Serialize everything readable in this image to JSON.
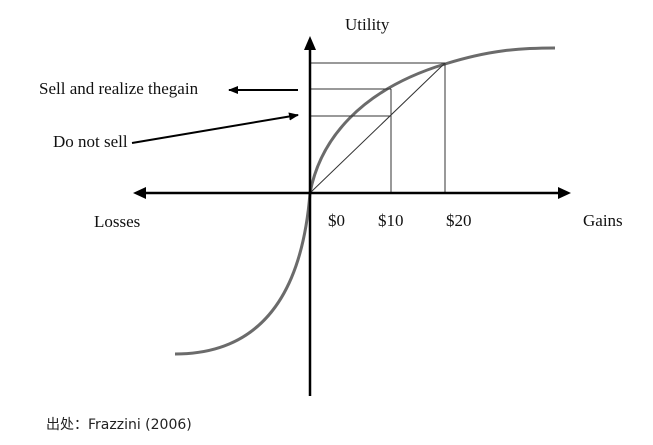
{
  "diagram": {
    "axis_labels": {
      "y": "Utility",
      "x_negative": "Losses",
      "x_positive": "Gains"
    },
    "tick_labels": [
      "$0",
      "$10",
      "$20"
    ],
    "annotations": {
      "sell": "Sell and realize thegain",
      "hold": "Do not sell"
    },
    "colors": {
      "curve": "#6b6b6b",
      "axes": "#000000",
      "guides": "#333333"
    }
  },
  "caption": {
    "source": "出处：Frazzini (2006)"
  }
}
